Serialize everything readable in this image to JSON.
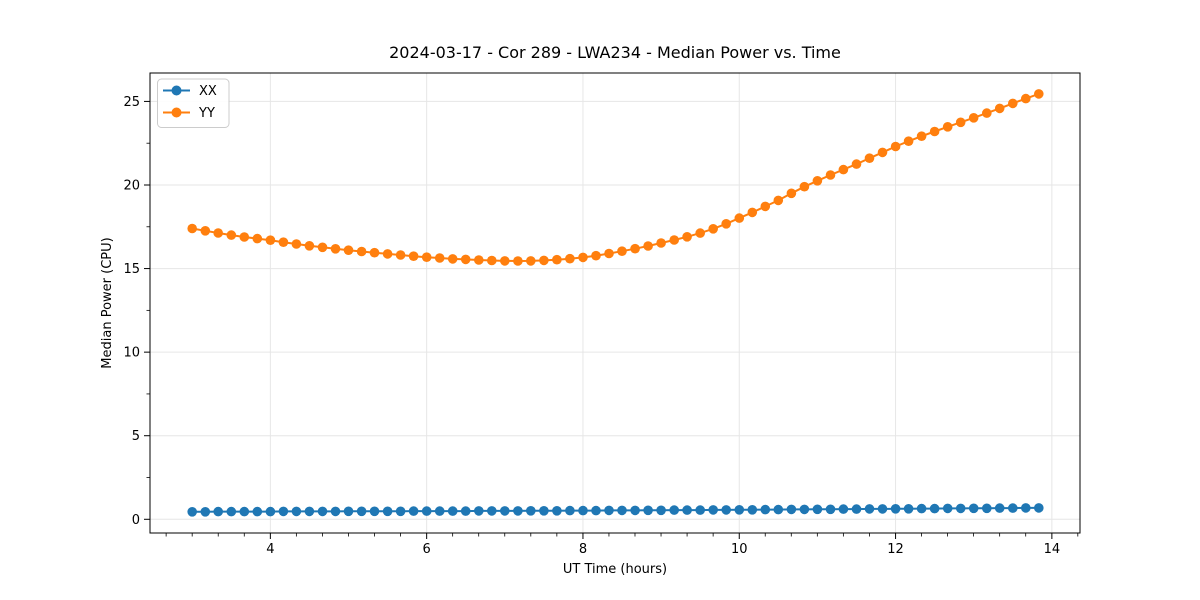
{
  "chart_data": {
    "type": "line",
    "title": "2024-03-17 - Cor 289 - LWA234 - Median Power vs. Time",
    "xlabel": "UT Time (hours)",
    "ylabel": "Median Power (CPU)",
    "xlim": [
      2.46,
      14.36
    ],
    "ylim": [
      -0.82,
      26.7
    ],
    "x_major_ticks": [
      4,
      6,
      8,
      10,
      12,
      14
    ],
    "y_major_ticks": [
      0,
      5,
      10,
      15,
      20,
      25
    ],
    "x_minor_step": 0.3333,
    "y_minor_step": 2.5,
    "grid": true,
    "grid_color": "#e6e6e6",
    "spine_color": "#000000",
    "legend_position": "upper left",
    "legend_border_color": "#cccccc",
    "marker": "o",
    "x": [
      3.0,
      3.167,
      3.333,
      3.5,
      3.667,
      3.833,
      4.0,
      4.167,
      4.333,
      4.5,
      4.667,
      4.833,
      5.0,
      5.167,
      5.333,
      5.5,
      5.667,
      5.833,
      6.0,
      6.167,
      6.333,
      6.5,
      6.667,
      6.833,
      7.0,
      7.167,
      7.333,
      7.5,
      7.667,
      7.833,
      8.0,
      8.167,
      8.333,
      8.5,
      8.667,
      8.833,
      9.0,
      9.167,
      9.333,
      9.5,
      9.667,
      9.833,
      10.0,
      10.167,
      10.333,
      10.5,
      10.667,
      10.833,
      11.0,
      11.167,
      11.333,
      11.5,
      11.667,
      11.833,
      12.0,
      12.167,
      12.333,
      12.5,
      12.667,
      12.833,
      13.0,
      13.167,
      13.333,
      13.5,
      13.667,
      13.833
    ],
    "series": [
      {
        "name": "XX",
        "color": "#1f77b4",
        "values": [
          0.45,
          0.45,
          0.46,
          0.46,
          0.46,
          0.46,
          0.46,
          0.47,
          0.47,
          0.47,
          0.47,
          0.47,
          0.48,
          0.48,
          0.48,
          0.48,
          0.48,
          0.49,
          0.49,
          0.49,
          0.49,
          0.49,
          0.5,
          0.5,
          0.5,
          0.5,
          0.51,
          0.51,
          0.51,
          0.52,
          0.52,
          0.52,
          0.53,
          0.53,
          0.53,
          0.54,
          0.54,
          0.55,
          0.55,
          0.55,
          0.56,
          0.56,
          0.57,
          0.57,
          0.58,
          0.58,
          0.59,
          0.59,
          0.6,
          0.6,
          0.61,
          0.61,
          0.62,
          0.62,
          0.63,
          0.63,
          0.64,
          0.64,
          0.65,
          0.65,
          0.66,
          0.66,
          0.67,
          0.67,
          0.68,
          0.68
        ]
      },
      {
        "name": "YY",
        "color": "#ff7f0e",
        "values": [
          17.4,
          17.26,
          17.13,
          17.0,
          16.89,
          16.79,
          16.7,
          16.58,
          16.47,
          16.36,
          16.27,
          16.18,
          16.1,
          16.02,
          15.95,
          15.88,
          15.81,
          15.74,
          15.68,
          15.63,
          15.58,
          15.55,
          15.51,
          15.48,
          15.46,
          15.45,
          15.46,
          15.49,
          15.53,
          15.59,
          15.67,
          15.77,
          15.9,
          16.04,
          16.19,
          16.35,
          16.53,
          16.71,
          16.9,
          17.12,
          17.38,
          17.68,
          18.02,
          18.36,
          18.72,
          19.08,
          19.5,
          19.9,
          20.25,
          20.6,
          20.92,
          21.25,
          21.6,
          21.95,
          22.3,
          22.62,
          22.92,
          23.2,
          23.48,
          23.75,
          24.02,
          24.3,
          24.58,
          24.88,
          25.17,
          25.45
        ]
      }
    ],
    "legend_entries": [
      "XX",
      "YY"
    ]
  }
}
